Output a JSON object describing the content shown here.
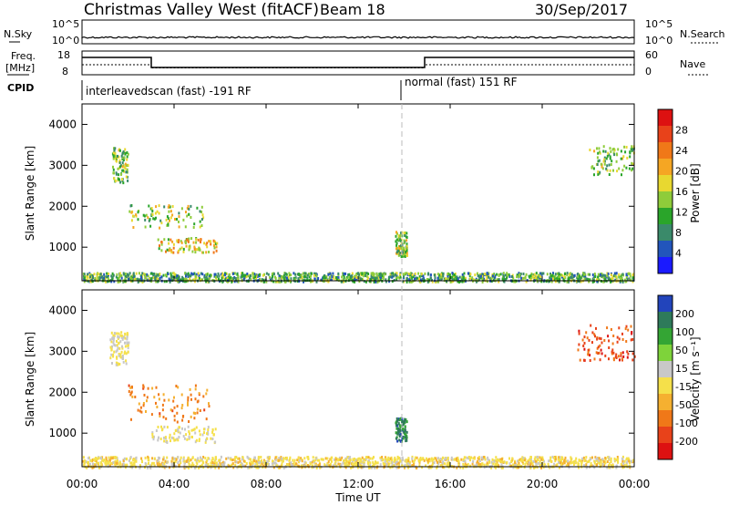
{
  "header": {
    "radar": "Christmas Valley West (fitACF)",
    "beam": "Beam 18",
    "date": "30/Sep/2017"
  },
  "strip_sky": {
    "left_label": "N.Sky",
    "left_ticks": [
      "10^5",
      "10^0"
    ],
    "right_label": "N.Search",
    "right_ticks": [
      "10^5",
      "10^0"
    ]
  },
  "strip_freq": {
    "left_label_1": "Freq.",
    "left_label_2": "[MHz]",
    "left_ticks": [
      "18",
      "8"
    ],
    "right_label": "Nave",
    "right_ticks": [
      "60",
      "0"
    ]
  },
  "cpid": {
    "label": "CPID",
    "mode1": "interleavedscan (fast) -191 RF",
    "mode2": "normal (fast) 151 RF"
  },
  "x_axis": {
    "label": "Time UT",
    "ticks": [
      "00:00",
      "04:00",
      "08:00",
      "12:00",
      "16:00",
      "20:00",
      "00:00"
    ]
  },
  "chart_data": [
    {
      "type": "heatmap",
      "title": "",
      "xlabel": "Time UT",
      "ylabel": "Slant Range [km]",
      "xlim": [
        0,
        24
      ],
      "ylim": [
        180,
        4500
      ],
      "y_ticks": [
        1000,
        2000,
        3000,
        4000
      ],
      "colorbar": {
        "label": "Power [dB]",
        "ticks": [
          "4",
          "8",
          "12",
          "16",
          "20",
          "24",
          "28"
        ],
        "colors": [
          "#1a1aff",
          "#2255bb",
          "#3a8a6a",
          "#2aa52a",
          "#8fcc3a",
          "#e8d830",
          "#f5a623",
          "#f07818",
          "#e8421a",
          "#dd1111"
        ]
      },
      "features": [
        {
          "region": "near-range band",
          "x_range": [
            0,
            24
          ],
          "y_range": [
            180,
            400
          ],
          "typical_value": 10
        },
        {
          "region": "echo patch",
          "x_range": [
            1.3,
            2.0
          ],
          "y_range": [
            2600,
            3450
          ],
          "typical_value": 12
        },
        {
          "region": "echo patch",
          "x_range": [
            2.0,
            5.3
          ],
          "y_range": [
            1500,
            2050
          ],
          "typical_value": 14
        },
        {
          "region": "echo patch",
          "x_range": [
            3.2,
            6.0
          ],
          "y_range": [
            900,
            1250
          ],
          "typical_value": 18
        },
        {
          "region": "echo patch",
          "x_range": [
            13.6,
            14.1
          ],
          "y_range": [
            800,
            1400
          ],
          "typical_value": 14
        },
        {
          "region": "echo patch",
          "x_range": [
            22.0,
            24.0
          ],
          "y_range": [
            2800,
            3500
          ],
          "typical_value": 12
        }
      ]
    },
    {
      "type": "heatmap",
      "title": "",
      "xlabel": "Time UT",
      "ylabel": "Slant Range [km]",
      "xlim": [
        0,
        24
      ],
      "ylim": [
        180,
        4500
      ],
      "y_ticks": [
        1000,
        2000,
        3000,
        4000
      ],
      "colorbar": {
        "label": "Velocity [m s⁻¹]",
        "ticks": [
          "200",
          "100",
          "50",
          "15",
          "-15",
          "-50",
          "-100",
          "-200"
        ],
        "colors": [
          "#2244bb",
          "#2e7a5a",
          "#34a534",
          "#7ed33a",
          "#c8c8c8",
          "#f5e04a",
          "#f5b030",
          "#f07818",
          "#e8421a",
          "#dd1111"
        ]
      },
      "features": [
        {
          "region": "near-range band",
          "x_range": [
            0,
            24
          ],
          "y_range": [
            180,
            450
          ],
          "typical_value": -20
        },
        {
          "region": "echo patch",
          "x_range": [
            1.2,
            2.0
          ],
          "y_range": [
            2700,
            3500
          ],
          "typical_value": 0
        },
        {
          "region": "echo patch",
          "x_range": [
            2.0,
            5.5
          ],
          "y_range": [
            1300,
            2200
          ],
          "typical_value": -100
        },
        {
          "region": "echo patch",
          "x_range": [
            3.0,
            5.8
          ],
          "y_range": [
            800,
            1200
          ],
          "typical_value": 0
        },
        {
          "region": "echo patch",
          "x_range": [
            13.6,
            14.1
          ],
          "y_range": [
            800,
            1400
          ],
          "typical_value": 150
        },
        {
          "region": "echo patch",
          "x_range": [
            21.5,
            24.0
          ],
          "y_range": [
            2800,
            3700
          ],
          "typical_value": -150
        }
      ]
    }
  ]
}
